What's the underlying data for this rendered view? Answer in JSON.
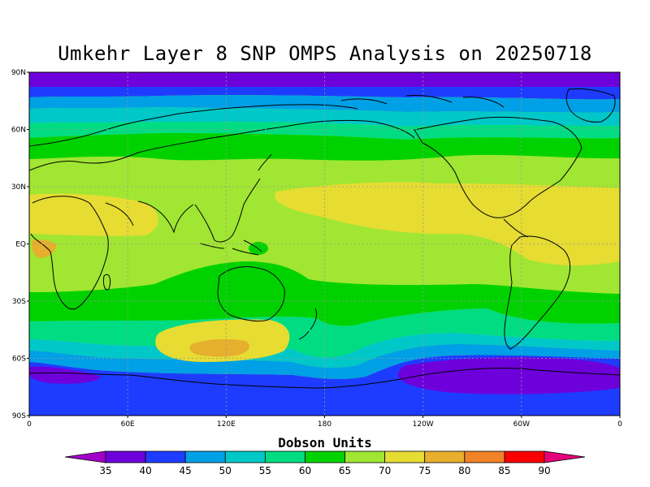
{
  "title": "Umkehr Layer 8 SNP OMPS Analysis on 20250718",
  "lat_labels": [
    "90N",
    "60N",
    "30N",
    "EQ",
    "30S",
    "60S",
    "90S"
  ],
  "lon_labels": [
    "0",
    "60E",
    "120E",
    "180",
    "120W",
    "60W",
    "0"
  ],
  "colorbar": {
    "title": "Dobson Units",
    "levels": [
      35,
      40,
      45,
      50,
      55,
      60,
      65,
      70,
      75,
      80,
      85,
      90
    ],
    "labels": [
      "35",
      "40",
      "45",
      "50",
      "55",
      "60",
      "65",
      "70",
      "75",
      "80",
      "85",
      "90"
    ],
    "colors": [
      "#a000c8",
      "#6e00dc",
      "#1e3cff",
      "#00a0e6",
      "#00c8c8",
      "#00dc82",
      "#00d200",
      "#a0e632",
      "#e6dc32",
      "#e6af2d",
      "#f08228",
      "#fa0000",
      "#e6007a"
    ]
  }
}
